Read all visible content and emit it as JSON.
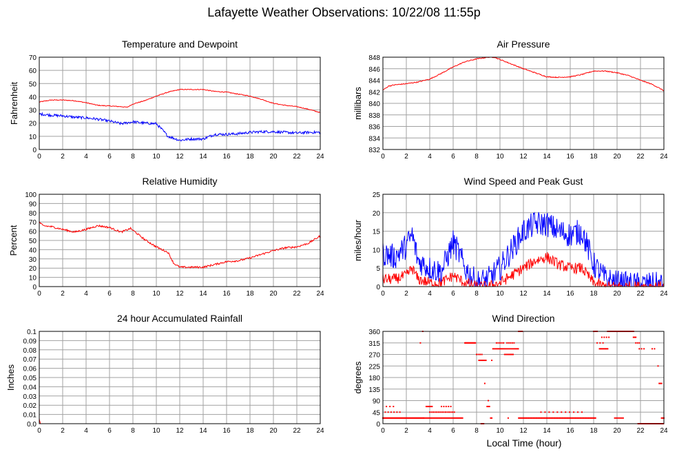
{
  "page": {
    "title": "Lafayette Weather Observations: 10/22/08 11:55p",
    "x_axis_label": "Local Time (hour)"
  },
  "colors": {
    "grid": "#a0a0a0",
    "series_red": "#ff0000",
    "series_blue": "#0000ff"
  },
  "chart_data": [
    {
      "id": "temp",
      "type": "line",
      "title": "Temperature and Dewpoint",
      "ylabel": "Fahrenheit",
      "xlim": [
        0,
        24
      ],
      "ylim": [
        0,
        70
      ],
      "xticks": [
        0,
        2,
        4,
        6,
        8,
        10,
        12,
        14,
        16,
        18,
        20,
        22,
        24
      ],
      "yticks": [
        0,
        10,
        20,
        30,
        40,
        50,
        60,
        70
      ],
      "grid": true,
      "series": [
        {
          "color": "red",
          "noise": 0.3,
          "x": [
            0,
            1,
            2,
            3,
            4,
            5,
            6,
            7,
            7.5,
            8,
            9,
            10,
            11,
            12,
            13,
            14,
            15,
            16,
            17,
            18,
            19,
            20,
            21,
            22,
            23,
            24
          ],
          "y": [
            36,
            37.5,
            37.5,
            37,
            35.5,
            33.5,
            33,
            32.5,
            32,
            34.5,
            37,
            40.5,
            43.5,
            45.5,
            45.5,
            45.5,
            44,
            43.5,
            42,
            40.5,
            38,
            35,
            33.5,
            32.5,
            30.5,
            28
          ]
        },
        {
          "color": "blue",
          "noise": 1.0,
          "x": [
            0,
            1,
            2,
            3,
            4,
            5,
            6,
            7,
            8,
            9,
            10,
            10.5,
            11,
            12,
            13,
            14,
            15,
            16,
            17,
            18,
            19,
            20,
            21,
            22,
            23,
            24
          ],
          "y": [
            27,
            26,
            25.5,
            24.5,
            24,
            23,
            21.5,
            19.5,
            21,
            20,
            19.5,
            15,
            10,
            7,
            8,
            8,
            11.5,
            11.5,
            12,
            13,
            13.5,
            13.5,
            13,
            12.5,
            13,
            13
          ]
        }
      ]
    },
    {
      "id": "pressure",
      "type": "line",
      "title": "Air Pressure",
      "ylabel": "millibars",
      "xlim": [
        0,
        24
      ],
      "ylim": [
        832,
        848
      ],
      "xticks": [
        0,
        2,
        4,
        6,
        8,
        10,
        12,
        14,
        16,
        18,
        20,
        22,
        24
      ],
      "yticks": [
        832,
        834,
        836,
        838,
        840,
        842,
        844,
        846,
        848
      ],
      "grid": true,
      "series": [
        {
          "color": "red",
          "noise": 0.08,
          "x": [
            0,
            0.5,
            1,
            2,
            3,
            4,
            5,
            6,
            7,
            8,
            9,
            9.5,
            10,
            11,
            12,
            13,
            14,
            15,
            16,
            17,
            18,
            19,
            20,
            21,
            22,
            23,
            24
          ],
          "y": [
            842.3,
            843,
            843.2,
            843.4,
            843.7,
            844.2,
            845.2,
            846.3,
            847.2,
            847.7,
            848,
            848,
            847.6,
            846.8,
            846,
            845.3,
            844.6,
            844.5,
            844.6,
            845,
            845.6,
            845.6,
            845.3,
            844.8,
            844,
            843.3,
            842.2
          ]
        }
      ]
    },
    {
      "id": "humidity",
      "type": "line",
      "title": "Relative Humidity",
      "ylabel": "Percent",
      "xlim": [
        0,
        24
      ],
      "ylim": [
        0,
        100
      ],
      "xticks": [
        0,
        2,
        4,
        6,
        8,
        10,
        12,
        14,
        16,
        18,
        20,
        22,
        24
      ],
      "yticks": [
        0,
        10,
        20,
        30,
        40,
        50,
        60,
        70,
        80,
        90,
        100
      ],
      "grid": true,
      "series": [
        {
          "color": "red",
          "noise": 1.0,
          "x": [
            0,
            0.3,
            1,
            2,
            3,
            4,
            5,
            6,
            7,
            7.8,
            8.5,
            9,
            10,
            11,
            11.5,
            12,
            13,
            14,
            15,
            16,
            17,
            18,
            19,
            20,
            21,
            22,
            23,
            24
          ],
          "y": [
            70,
            66,
            65,
            62,
            59,
            62,
            66,
            64,
            59,
            63,
            56,
            51,
            43,
            37,
            25,
            21,
            21,
            21,
            24,
            27,
            28,
            31,
            35,
            39,
            42,
            43,
            47,
            55
          ]
        }
      ]
    },
    {
      "id": "wind",
      "type": "line",
      "title": "Wind Speed and Peak Gust",
      "ylabel": "miles/hour",
      "xlim": [
        0,
        24
      ],
      "ylim": [
        0,
        25
      ],
      "xticks": [
        0,
        2,
        4,
        6,
        8,
        10,
        12,
        14,
        16,
        18,
        20,
        22,
        24
      ],
      "yticks": [
        0,
        5,
        10,
        15,
        20,
        25
      ],
      "grid": true,
      "series": [
        {
          "color": "blue",
          "noise": 3.5,
          "x": [
            0,
            1,
            2,
            2.5,
            3,
            4,
            5,
            6,
            6.5,
            7,
            8,
            9,
            10,
            11,
            12,
            13,
            14,
            15,
            16,
            17,
            18,
            19,
            20,
            21,
            22,
            23,
            24
          ],
          "y": [
            9,
            8,
            11,
            14,
            7,
            5,
            4,
            12,
            9,
            5,
            1,
            2,
            5,
            10,
            15,
            17,
            17,
            15,
            14,
            15,
            6,
            2,
            1,
            0.5,
            0.5,
            0.5,
            0.5
          ]
        },
        {
          "color": "red",
          "noise": 1.5,
          "x": [
            0,
            1,
            2,
            2.5,
            3,
            4,
            5,
            6,
            6.5,
            7,
            8,
            9,
            10,
            11,
            12,
            13,
            14,
            15,
            16,
            17,
            18,
            19,
            20,
            21,
            22,
            23,
            24
          ],
          "y": [
            2,
            2,
            3,
            5,
            2,
            1,
            1,
            3,
            2,
            1,
            0,
            0,
            1,
            3,
            5,
            7,
            8,
            6,
            5,
            5,
            1,
            0,
            0,
            0,
            0,
            0,
            0
          ]
        }
      ]
    },
    {
      "id": "rain",
      "type": "line",
      "title": "24 hour Accumulated Rainfall",
      "ylabel": "Inches",
      "xlim": [
        0,
        24
      ],
      "ylim": [
        0,
        0.1
      ],
      "xticks": [
        0,
        2,
        4,
        6,
        8,
        10,
        12,
        14,
        16,
        18,
        20,
        22,
        24
      ],
      "yticks": [
        0.0,
        0.01,
        0.02,
        0.03,
        0.04,
        0.05,
        0.06,
        0.07,
        0.08,
        0.09,
        0.1
      ],
      "ytick_labels": [
        "0.0",
        "0.01",
        "0.02",
        "0.03",
        "0.04",
        "0.05",
        "0.06",
        "0.07",
        "0.08",
        "0.09",
        "0.1"
      ],
      "grid": true,
      "series": [
        {
          "color": "red",
          "noise": 0,
          "x": [
            0,
            0.02,
            0.1,
            24
          ],
          "y": [
            0.006,
            0.004,
            0,
            0
          ]
        }
      ]
    },
    {
      "id": "direction",
      "type": "scatter",
      "title": "Wind Direction",
      "ylabel": "degrees",
      "xlim": [
        0,
        24
      ],
      "ylim": [
        0,
        360
      ],
      "xticks": [
        0,
        2,
        4,
        6,
        8,
        10,
        12,
        14,
        16,
        18,
        20,
        22,
        24
      ],
      "yticks": [
        0,
        45,
        90,
        135,
        180,
        225,
        270,
        315,
        360
      ],
      "grid": true,
      "series": [
        {
          "color": "red",
          "segments": [
            {
              "x0": 0,
              "x1": 3.5,
              "y": 22,
              "step": 0.06
            },
            {
              "x0": 0.2,
              "x1": 1.5,
              "y": 45,
              "step": 0.25
            },
            {
              "x0": 0.3,
              "x1": 0.9,
              "y": 67,
              "step": 0.3
            },
            {
              "x0": 3.2,
              "x1": 3.2,
              "y": 315,
              "step": 1
            },
            {
              "x0": 3.4,
              "x1": 3.4,
              "y": 360,
              "step": 1
            },
            {
              "x0": 3.5,
              "x1": 6.8,
              "y": 22,
              "step": 0.1
            },
            {
              "x0": 3.7,
              "x1": 4.2,
              "y": 67,
              "step": 0.1
            },
            {
              "x0": 4.0,
              "x1": 6.2,
              "y": 45,
              "step": 0.15
            },
            {
              "x0": 5.0,
              "x1": 5.8,
              "y": 67,
              "step": 0.2
            },
            {
              "x0": 7.0,
              "x1": 7.9,
              "y": 315,
              "step": 0.06
            },
            {
              "x0": 8.0,
              "x1": 8.5,
              "y": 270,
              "step": 0.15
            },
            {
              "x0": 8.2,
              "x1": 8.8,
              "y": 247,
              "step": 0.12
            },
            {
              "x0": 8.4,
              "x1": 8.6,
              "y": 0,
              "step": 0.1
            },
            {
              "x0": 8.7,
              "x1": 8.7,
              "y": 157,
              "step": 1
            },
            {
              "x0": 8.9,
              "x1": 9.1,
              "y": 67,
              "step": 0.1
            },
            {
              "x0": 9.0,
              "x1": 9.0,
              "y": 90,
              "step": 1
            },
            {
              "x0": 9.2,
              "x1": 9.3,
              "y": 22,
              "step": 0.1
            },
            {
              "x0": 9.3,
              "x1": 9.3,
              "y": 247,
              "step": 1
            },
            {
              "x0": 9.4,
              "x1": 11.6,
              "y": 292,
              "step": 0.12
            },
            {
              "x0": 9.7,
              "x1": 10.3,
              "y": 315,
              "step": 0.15
            },
            {
              "x0": 10.4,
              "x1": 11.2,
              "y": 270,
              "step": 0.12
            },
            {
              "x0": 10.6,
              "x1": 11.2,
              "y": 315,
              "step": 0.15
            },
            {
              "x0": 11.6,
              "x1": 11.9,
              "y": 360,
              "step": 0.1
            },
            {
              "x0": 10.7,
              "x1": 10.7,
              "y": 22,
              "step": 1
            },
            {
              "x0": 11.6,
              "x1": 18.2,
              "y": 22,
              "step": 0.08
            },
            {
              "x0": 13.5,
              "x1": 17.0,
              "y": 45,
              "step": 0.35
            },
            {
              "x0": 18.0,
              "x1": 18.3,
              "y": 360,
              "step": 0.1
            },
            {
              "x0": 18.3,
              "x1": 19.0,
              "y": 315,
              "step": 0.25
            },
            {
              "x0": 18.5,
              "x1": 19.2,
              "y": 292,
              "step": 0.1
            },
            {
              "x0": 18.7,
              "x1": 19.3,
              "y": 337,
              "step": 0.2
            },
            {
              "x0": 19.2,
              "x1": 19.6,
              "y": 360,
              "step": 0.1
            },
            {
              "x0": 19.6,
              "x1": 20.7,
              "y": 360,
              "step": 0.06
            },
            {
              "x0": 19.8,
              "x1": 20.6,
              "y": 22,
              "step": 0.12
            },
            {
              "x0": 20.7,
              "x1": 21.4,
              "y": 360,
              "step": 0.1
            },
            {
              "x0": 21.4,
              "x1": 21.6,
              "y": 337,
              "step": 0.1
            },
            {
              "x0": 21.6,
              "x1": 21.9,
              "y": 315,
              "step": 0.15
            },
            {
              "x0": 21.9,
              "x1": 22.3,
              "y": 292,
              "step": 0.2
            },
            {
              "x0": 21.8,
              "x1": 24.0,
              "y": 0,
              "step": 0.08
            },
            {
              "x0": 23.0,
              "x1": 23.2,
              "y": 292,
              "step": 0.2
            },
            {
              "x0": 23.5,
              "x1": 23.5,
              "y": 225,
              "step": 1
            },
            {
              "x0": 23.6,
              "x1": 23.8,
              "y": 157,
              "step": 0.1
            },
            {
              "x0": 23.8,
              "x1": 24.0,
              "y": 22,
              "step": 0.1
            }
          ]
        }
      ]
    }
  ]
}
